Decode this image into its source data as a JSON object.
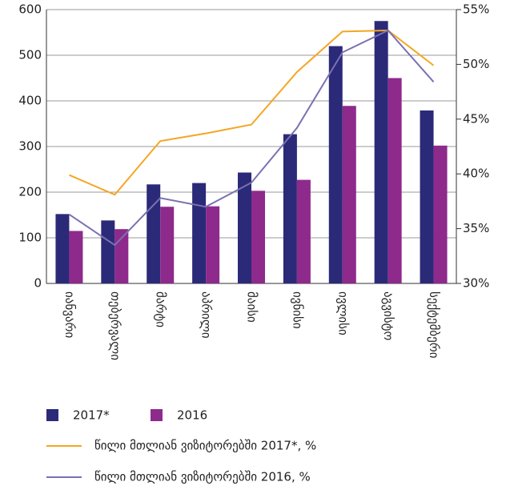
{
  "chart_data": {
    "type": "bar-line",
    "categories": [
      "იანვარი",
      "თებერვალი",
      "მარტი",
      "აპრილი",
      "მაისი",
      "ივნისი",
      "ივლისი",
      "აგვისტო",
      "სექტემბერი"
    ],
    "series": [
      {
        "name": "2017*",
        "type": "bar",
        "color": "#2b2a78",
        "values": [
          152,
          138,
          217,
          220,
          243,
          327,
          520,
          575,
          379
        ]
      },
      {
        "name": "2016",
        "type": "bar",
        "color": "#8e2a8c",
        "values": [
          115,
          119,
          168,
          169,
          203,
          227,
          389,
          450,
          302
        ]
      },
      {
        "name": "წილი მთლიან ვიზიტორებში 2017*, %",
        "type": "line",
        "axis": "y2",
        "color": "#f5a623",
        "values": [
          39.9,
          38.1,
          43.0,
          43.7,
          44.5,
          49.3,
          53.0,
          53.1,
          49.9
        ]
      },
      {
        "name": "წილი მთლიან ვიზიტორებში 2016, %",
        "type": "line",
        "axis": "y2",
        "color": "#7b70b2",
        "values": [
          36.3,
          33.5,
          37.8,
          37.0,
          39.2,
          44.2,
          51.1,
          53.1,
          48.4
        ]
      }
    ],
    "ylim": [
      0,
      600
    ],
    "yticks": [
      0,
      100,
      200,
      300,
      400,
      500,
      600
    ],
    "y2lim": [
      30,
      55
    ],
    "y2ticks": [
      {
        "value": 30,
        "label": "30%"
      },
      {
        "value": 35,
        "label": "35%"
      },
      {
        "value": 40,
        "label": "40%"
      },
      {
        "value": 45,
        "label": "45%"
      },
      {
        "value": 50,
        "label": "50%"
      },
      {
        "value": 55,
        "label": "55%"
      }
    ],
    "grid": true
  }
}
